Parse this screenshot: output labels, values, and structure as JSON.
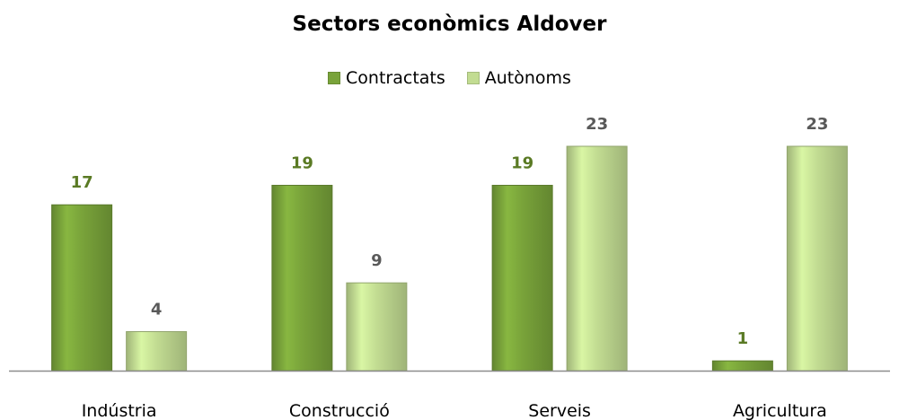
{
  "chart_data": {
    "type": "bar",
    "title": "Sectors econòmics Aldover",
    "categories": [
      "Indústria",
      "Construcció",
      "Serveis",
      "Agricultura"
    ],
    "series": [
      {
        "name": "Contractats",
        "values": [
          17,
          19,
          19,
          1
        ],
        "color": "#79a33a",
        "label_color": "#5a7a24"
      },
      {
        "name": "Autònoms",
        "values": [
          4,
          9,
          23,
          23
        ],
        "color": "#c2dc92",
        "label_color": "#595959"
      }
    ],
    "ylim": [
      0,
      23
    ],
    "grid": false,
    "legend_position": "top"
  }
}
